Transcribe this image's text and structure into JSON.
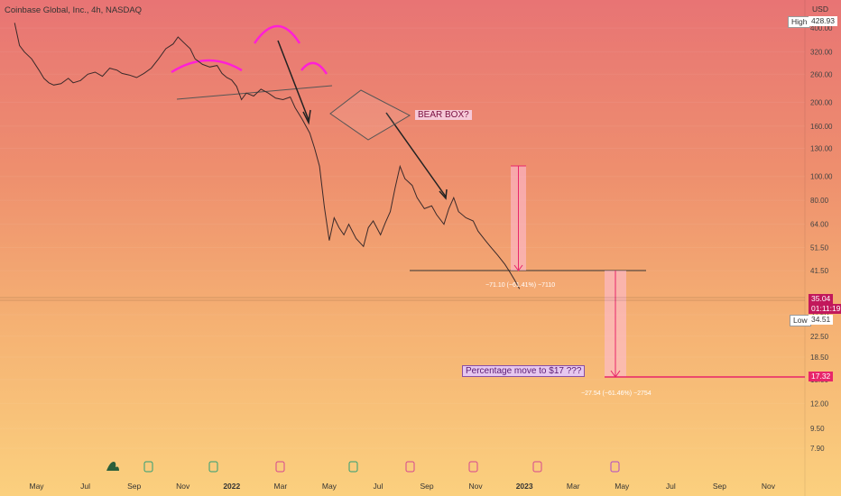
{
  "header": {
    "symbol_title": "Coinbase Global, Inc., 4h, NASDAQ",
    "currency": "USD"
  },
  "price_tags": {
    "high_label": "High",
    "high_value": "428.93",
    "last_value": "35.04",
    "countdown": "01:11:19",
    "low_label": "Low",
    "low_value": "34.51",
    "target_value": "17.32"
  },
  "annotations": {
    "bear_box": "BEAR BOX?",
    "percentage_move": "Percentage move to $17 ???",
    "measure_1": "−71.10 (−61.41%) −7110",
    "measure_2": "−27.54 (−61.46%) −2754"
  },
  "colors": {
    "accent_pink": "#ff1fd6",
    "target_line": "#e8266a",
    "last_price": "#c2185b",
    "earnings_green": "#2e9e74",
    "earnings_pink": "#d6458f"
  },
  "chart_data": {
    "type": "line",
    "title": "",
    "xlabel": "",
    "ylabel": "",
    "y_scale": "log",
    "ylim": [
      7.2,
      470
    ],
    "y_ticks": [
      400,
      320,
      260,
      200,
      160,
      130,
      100,
      80,
      64,
      51.5,
      41.5,
      27.5,
      22.5,
      18.5,
      15,
      12,
      9.5,
      7.9
    ],
    "y_tick_labels": [
      "400.00",
      "320.00",
      "260.00",
      "200.00",
      "160.00",
      "130.00",
      "100.00",
      "80.00",
      "64.00",
      "51.50",
      "41.50",
      "27.50",
      "22.50",
      "18.50",
      "15.00",
      "12.00",
      "9.50",
      "7.90"
    ],
    "x_ticks": [
      {
        "label": "May",
        "x": 1.5
      },
      {
        "label": "Jul",
        "x": 3.5
      },
      {
        "label": "Sep",
        "x": 5.5
      },
      {
        "label": "Nov",
        "x": 7.5
      },
      {
        "label": "2022",
        "x": 9.5,
        "bold": true
      },
      {
        "label": "Mar",
        "x": 11.5
      },
      {
        "label": "May",
        "x": 13.5
      },
      {
        "label": "Jul",
        "x": 15.5
      },
      {
        "label": "Sep",
        "x": 17.5
      },
      {
        "label": "Nov",
        "x": 19.5
      },
      {
        "label": "2023",
        "x": 21.5,
        "bold": true
      },
      {
        "label": "Mar",
        "x": 23.5
      },
      {
        "label": "May",
        "x": 25.5
      },
      {
        "label": "Jul",
        "x": 27.5
      },
      {
        "label": "Sep",
        "x": 29.5
      },
      {
        "label": "Nov",
        "x": 31.5
      }
    ],
    "xlim": [
      0,
      33
    ],
    "series": [
      {
        "points": [
          [
            0.6,
            420
          ],
          [
            0.8,
            340
          ],
          [
            1.0,
            320
          ],
          [
            1.3,
            300
          ],
          [
            1.6,
            270
          ],
          [
            1.8,
            250
          ],
          [
            2.0,
            240
          ],
          [
            2.2,
            235
          ],
          [
            2.5,
            238
          ],
          [
            2.8,
            250
          ],
          [
            3.0,
            240
          ],
          [
            3.3,
            245
          ],
          [
            3.6,
            260
          ],
          [
            3.9,
            265
          ],
          [
            4.2,
            255
          ],
          [
            4.5,
            275
          ],
          [
            4.8,
            270
          ],
          [
            5.0,
            262
          ],
          [
            5.3,
            258
          ],
          [
            5.6,
            252
          ],
          [
            5.9,
            262
          ],
          [
            6.2,
            275
          ],
          [
            6.5,
            300
          ],
          [
            6.8,
            330
          ],
          [
            7.1,
            345
          ],
          [
            7.3,
            368
          ],
          [
            7.5,
            352
          ],
          [
            7.8,
            330
          ],
          [
            8.0,
            300
          ],
          [
            8.3,
            285
          ],
          [
            8.6,
            278
          ],
          [
            8.9,
            282
          ],
          [
            9.1,
            262
          ],
          [
            9.3,
            252
          ],
          [
            9.5,
            246
          ],
          [
            9.7,
            232
          ],
          [
            9.9,
            205
          ],
          [
            10.1,
            218
          ],
          [
            10.4,
            212
          ],
          [
            10.7,
            226
          ],
          [
            11.0,
            218
          ],
          [
            11.3,
            208
          ],
          [
            11.6,
            205
          ],
          [
            11.9,
            210
          ],
          [
            12.1,
            190
          ],
          [
            12.4,
            170
          ],
          [
            12.7,
            150
          ],
          [
            12.9,
            130
          ],
          [
            13.1,
            110
          ],
          [
            13.3,
            75
          ],
          [
            13.5,
            55
          ],
          [
            13.7,
            68
          ],
          [
            13.9,
            62
          ],
          [
            14.1,
            58
          ],
          [
            14.3,
            64
          ],
          [
            14.6,
            56
          ],
          [
            14.9,
            52
          ],
          [
            15.1,
            62
          ],
          [
            15.3,
            66
          ],
          [
            15.6,
            58
          ],
          [
            15.8,
            65
          ],
          [
            16.0,
            72
          ],
          [
            16.2,
            90
          ],
          [
            16.4,
            110
          ],
          [
            16.6,
            98
          ],
          [
            16.9,
            92
          ],
          [
            17.1,
            82
          ],
          [
            17.4,
            74
          ],
          [
            17.7,
            76
          ],
          [
            17.9,
            70
          ],
          [
            18.2,
            64
          ],
          [
            18.4,
            74
          ],
          [
            18.6,
            82
          ],
          [
            18.8,
            72
          ],
          [
            19.1,
            68
          ],
          [
            19.4,
            66
          ],
          [
            19.6,
            60
          ],
          [
            19.9,
            55
          ],
          [
            20.1,
            52
          ],
          [
            20.4,
            48
          ],
          [
            20.7,
            44
          ],
          [
            20.9,
            41
          ],
          [
            21.1,
            38
          ],
          [
            21.3,
            35.04
          ]
        ]
      }
    ]
  }
}
